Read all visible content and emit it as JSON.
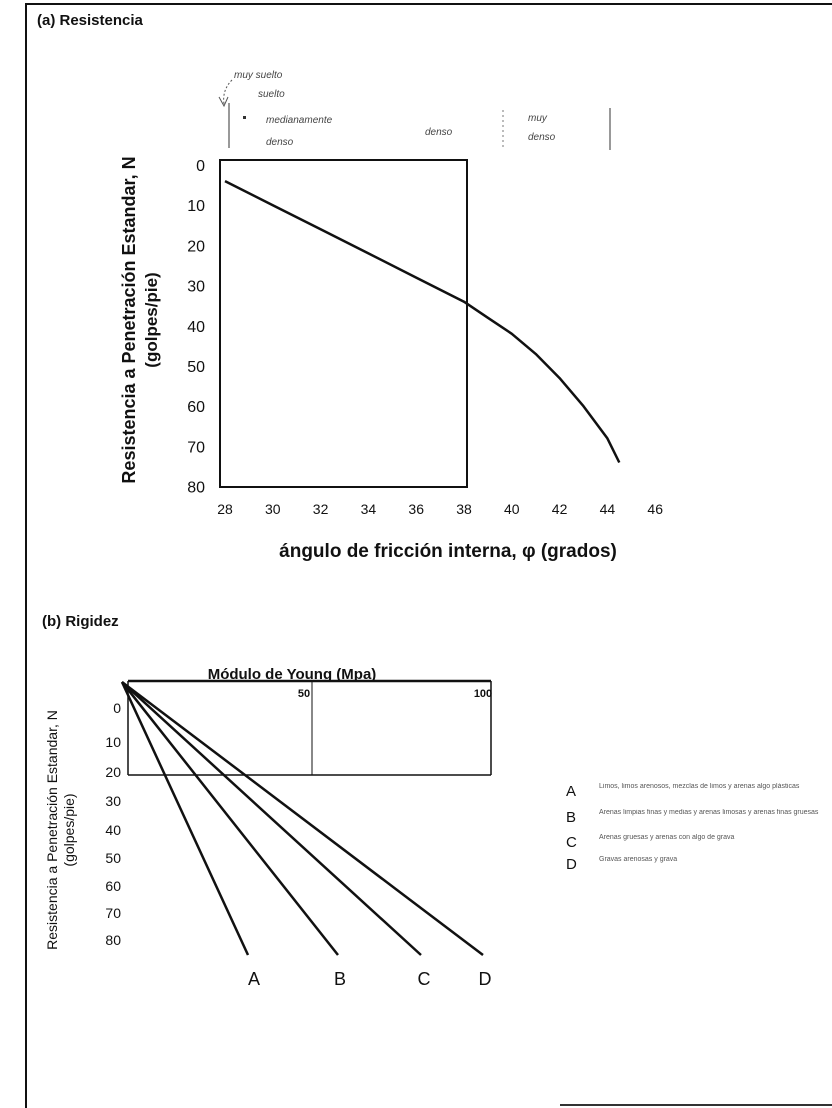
{
  "panel_a_title": "(a) Resistencia",
  "panel_b_title": "(b) Rigidez",
  "chart_data": [
    {
      "type": "line",
      "xlabel": "ángulo de fricción interna, φ (grados)",
      "ylabel": [
        "Resistencia a Penetración Estandar, N",
        "(golpes/pie)"
      ],
      "xlim": [
        28,
        46
      ],
      "ylim": [
        0,
        80
      ],
      "y_inverted": true,
      "xticks": [
        "28",
        "30",
        "32",
        "34",
        "36",
        "38",
        "40",
        "42",
        "44",
        "46"
      ],
      "yticks": [
        "0",
        "10",
        "20",
        "30",
        "40",
        "50",
        "60",
        "70",
        "80"
      ],
      "density_labels": [
        "muy suelto",
        "suelto",
        "medianamente",
        "denso",
        "denso",
        "muy",
        "denso"
      ],
      "series": [
        {
          "x": [
            28,
            30,
            32,
            34,
            36,
            38,
            39,
            40,
            41,
            42,
            43,
            44,
            44.5
          ],
          "y": [
            4,
            10,
            16,
            22,
            28,
            34,
            38,
            42,
            47,
            53,
            60,
            68,
            74
          ]
        }
      ]
    },
    {
      "type": "line",
      "xlabel": "Módulo de Young (Mpa)",
      "ylabel": [
        "Resistencia a Penetración Estandar, N",
        "(golpes/pie)"
      ],
      "xlim": [
        0,
        100
      ],
      "ylim": [
        0,
        80
      ],
      "x_axis_position": "top",
      "y_inverted": true,
      "xticks": [
        "50",
        "100"
      ],
      "yticks": [
        "0",
        "10",
        "20",
        "30",
        "40",
        "50",
        "60",
        "70",
        "80"
      ],
      "reference_line_x": 50,
      "series": [
        {
          "name": "A",
          "x": [
            0,
            35
          ],
          "y": [
            0,
            80
          ]
        },
        {
          "name": "B",
          "x": [
            0,
            60
          ],
          "y": [
            0,
            80
          ]
        },
        {
          "name": "C",
          "x": [
            0,
            80
          ],
          "y": [
            0,
            80
          ]
        },
        {
          "name": "D",
          "x": [
            0,
            100
          ],
          "y": [
            0,
            80
          ]
        }
      ]
    }
  ],
  "legend": [
    {
      "letter": "A",
      "text": "Limos, limos arenosos, mezclas de limos y arenas algo plásticas"
    },
    {
      "letter": "B",
      "text": "Arenas limpias finas y medias y arenas limosas y arenas finas gruesas"
    },
    {
      "letter": "C",
      "text": "Arenas gruesas y arenas con algo de grava"
    },
    {
      "letter": "D",
      "text": "Gravas arenosas y grava"
    }
  ]
}
